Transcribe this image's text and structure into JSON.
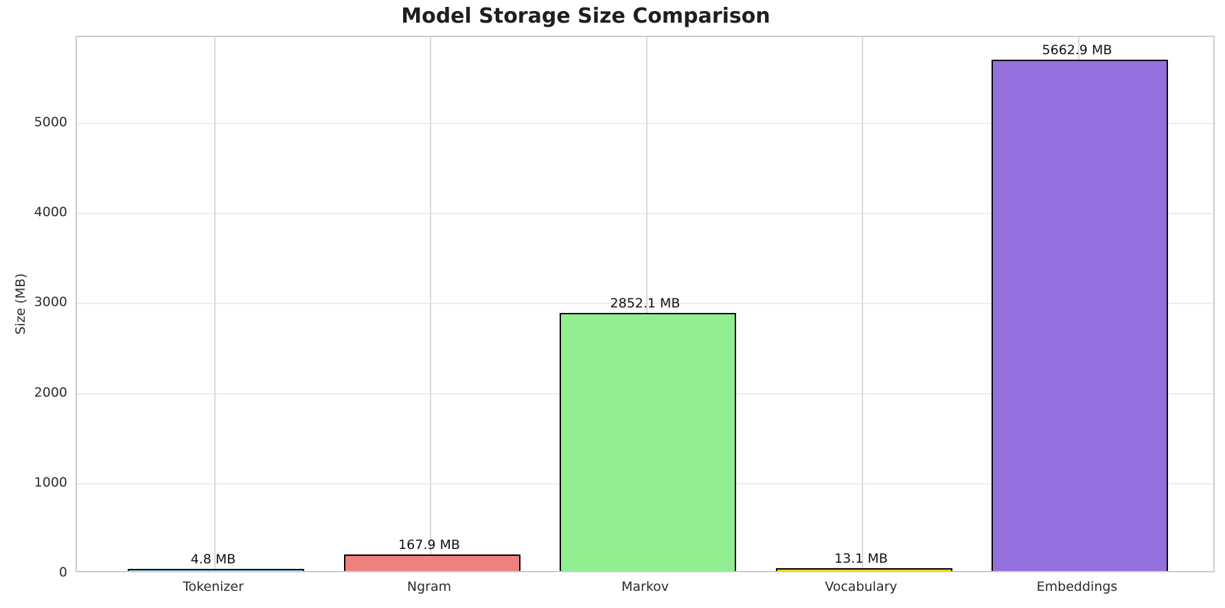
{
  "chart_data": {
    "type": "bar",
    "title": "Model Storage Size Comparison",
    "xlabel": "",
    "ylabel": "Size (MB)",
    "categories": [
      "Tokenizer",
      "Ngram",
      "Markov",
      "Vocabulary",
      "Embeddings"
    ],
    "values": [
      4.8,
      167.9,
      2852.1,
      13.1,
      5662.9
    ],
    "value_labels": [
      "4.8 MB",
      "167.9 MB",
      "2852.1 MB",
      "13.1 MB",
      "5662.9 MB"
    ],
    "value_label_unit": "MB",
    "bar_colors": [
      "#87ceeb",
      "#f08080",
      "#90ee90",
      "#ffd700",
      "#9370db"
    ],
    "bar_edge_color": "#000000",
    "yticks": [
      0,
      1000,
      2000,
      3000,
      4000,
      5000
    ],
    "ylim": [
      0,
      5960
    ],
    "grid": true,
    "grid_axes": "both",
    "legend": "none",
    "background_color": "#ffffff",
    "grid_color": "#ececec",
    "spine_color": "#cccccc",
    "title_color": "#1f1f1f",
    "tick_label_color": "#2b2b2b"
  }
}
